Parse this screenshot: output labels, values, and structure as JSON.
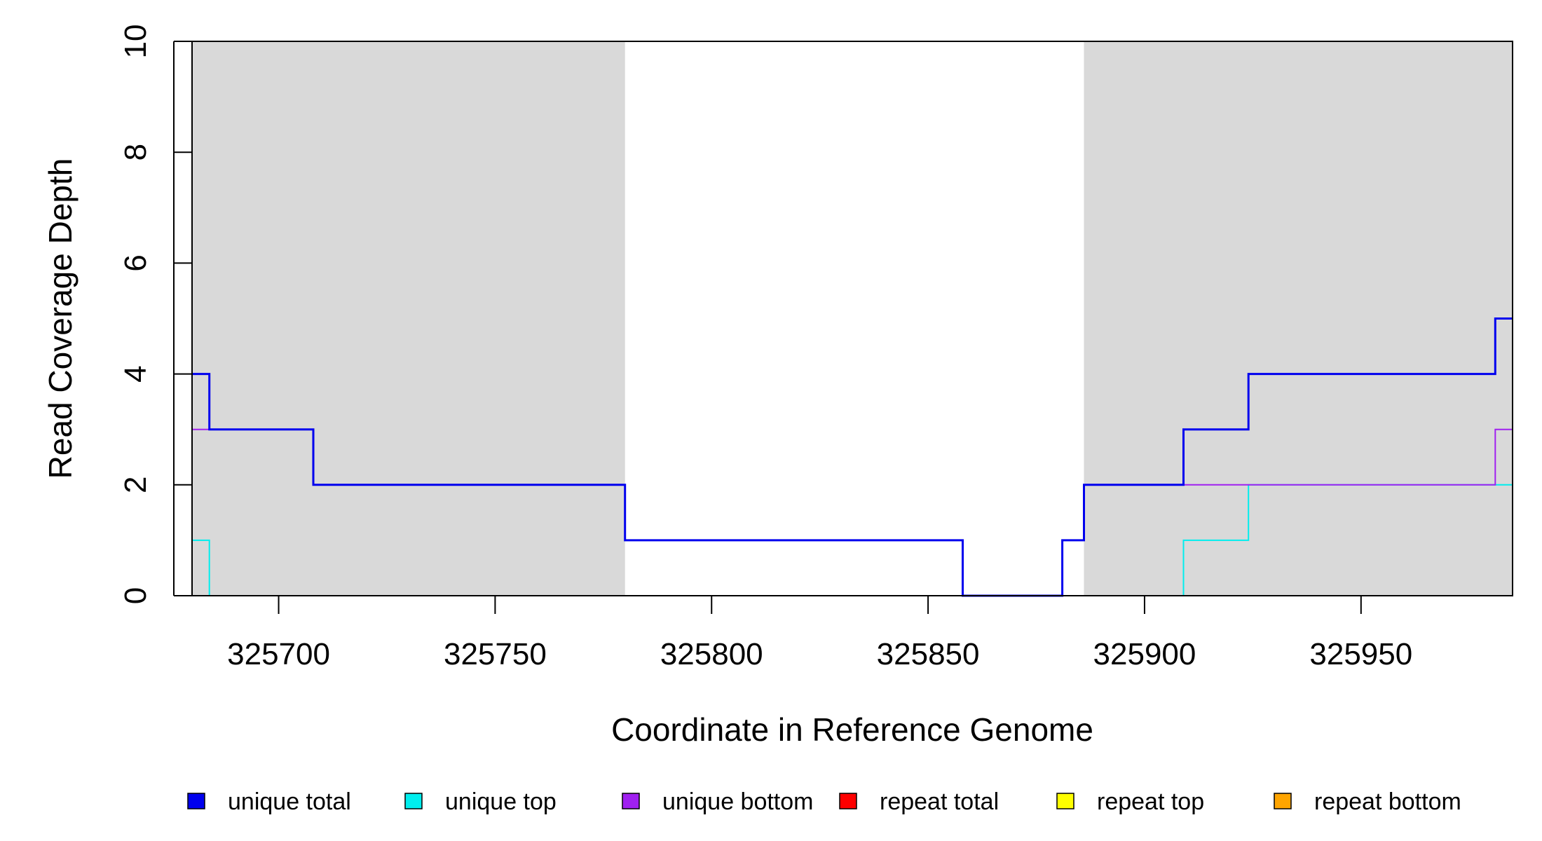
{
  "chart_data": {
    "type": "line",
    "xlabel": "Coordinate in Reference Genome",
    "ylabel": "Read Coverage Depth",
    "xlim": [
      325680,
      325985
    ],
    "ylim": [
      0,
      10
    ],
    "x_ticks": [
      325700,
      325750,
      325800,
      325850,
      325900,
      325950
    ],
    "x_tick_labels": [
      "325700",
      "325750",
      "325800",
      "325850",
      "325900",
      "325950"
    ],
    "y_ticks": [
      0,
      2,
      4,
      6,
      8,
      10
    ],
    "y_tick_labels": [
      "0",
      "2",
      "4",
      "6",
      "8",
      "10"
    ],
    "grid": false,
    "legend_position": "bottom",
    "shaded_regions": [
      {
        "x_start": 325680,
        "x_end": 325780,
        "color": "#d9d9d9"
      },
      {
        "x_start": 325886,
        "x_end": 325985,
        "color": "#d9d9d9"
      }
    ],
    "series": [
      {
        "name": "unique total",
        "color": "#0000ee",
        "points": [
          [
            325680,
            4
          ],
          [
            325684,
            4
          ],
          [
            325684,
            3
          ],
          [
            325708,
            3
          ],
          [
            325708,
            2
          ],
          [
            325780,
            2
          ],
          [
            325780,
            1
          ],
          [
            325858,
            1
          ],
          [
            325858,
            0
          ],
          [
            325881,
            0
          ],
          [
            325881,
            1
          ],
          [
            325886,
            1
          ],
          [
            325886,
            2
          ],
          [
            325909,
            2
          ],
          [
            325909,
            3
          ],
          [
            325924,
            3
          ],
          [
            325924,
            4
          ],
          [
            325981,
            4
          ],
          [
            325981,
            5
          ],
          [
            325985,
            5
          ]
        ]
      },
      {
        "name": "unique top",
        "color": "#00eeee",
        "points": [
          [
            325680,
            1
          ],
          [
            325684,
            1
          ],
          [
            325684,
            0
          ],
          [
            325909,
            0
          ],
          [
            325909,
            1
          ],
          [
            325924,
            1
          ],
          [
            325924,
            2
          ],
          [
            325985,
            2
          ]
        ]
      },
      {
        "name": "unique bottom",
        "color": "#a020f0",
        "points": [
          [
            325680,
            3
          ],
          [
            325708,
            3
          ],
          [
            325708,
            2
          ],
          [
            325780,
            2
          ],
          [
            325780,
            1
          ],
          [
            325858,
            1
          ],
          [
            325858,
            0
          ],
          [
            325881,
            0
          ],
          [
            325881,
            1
          ],
          [
            325886,
            1
          ],
          [
            325886,
            2
          ],
          [
            325981,
            2
          ],
          [
            325981,
            3
          ],
          [
            325985,
            3
          ]
        ]
      },
      {
        "name": "repeat total",
        "color": "#ff0000",
        "points": [
          [
            325680,
            0
          ],
          [
            325985,
            0
          ]
        ]
      },
      {
        "name": "repeat top",
        "color": "#ffff00",
        "points": [
          [
            325680,
            0
          ],
          [
            325985,
            0
          ]
        ]
      },
      {
        "name": "repeat bottom",
        "color": "#ffa500",
        "points": [
          [
            325680,
            0
          ],
          [
            325985,
            0
          ]
        ]
      }
    ]
  }
}
